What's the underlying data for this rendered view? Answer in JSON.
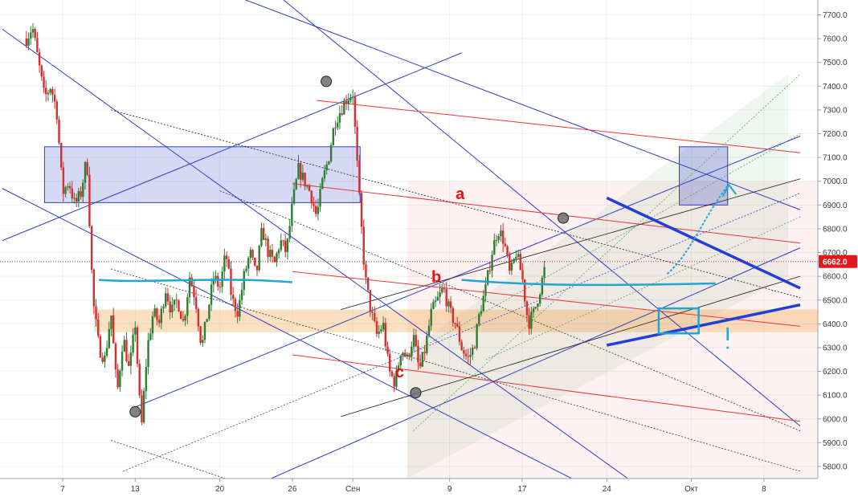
{
  "chart_data": {
    "type": "candlestick",
    "y_axis": {
      "side": "right",
      "range": [
        5750,
        7770
      ],
      "ticks": [
        5800,
        5900,
        6000,
        6100,
        6200,
        6300,
        6400,
        6500,
        6600,
        6700,
        6800,
        6900,
        7000,
        7100,
        7200,
        7300,
        7400,
        7500,
        7600,
        7700
      ],
      "tick_labels": [
        "5800.0",
        "5900.0",
        "6000.0",
        "6100.0",
        "6200.0",
        "6300.0",
        "6400.0",
        "6500.0",
        "6600.0",
        "6700.0",
        "6800.0",
        "6900.0",
        "7000.0",
        "7100.0",
        "7200.0",
        "7300.0",
        "7400.0",
        "7500.0",
        "7600.0",
        "7700.0"
      ]
    },
    "x_axis": {
      "range": [
        0,
        43
      ],
      "ticks": [
        {
          "day": 3,
          "label": "7"
        },
        {
          "day": 9,
          "label": "13"
        },
        {
          "day": 16,
          "label": "20"
        },
        {
          "day": 22,
          "label": "26"
        },
        {
          "day": 27,
          "label": "Сен"
        },
        {
          "day": 35,
          "label": "9"
        },
        {
          "day": 41,
          "label": "17"
        },
        {
          "day": 48,
          "label": "24"
        },
        {
          "day": 55,
          "label": "Окт"
        },
        {
          "day": 61,
          "label": "8"
        }
      ]
    },
    "grid": true,
    "current_price": {
      "value": 6662,
      "label": "6662.0",
      "color": "#e31a1c"
    },
    "colors": {
      "up": "#2e7d32",
      "down": "#d32f2f",
      "lines": "#2f3fc7",
      "zones": "#2f3fc7",
      "support": "#f2a64a",
      "resistance": "#e53935",
      "highlight": "#1fa5d6"
    },
    "close_path": [
      [
        0,
        7600
      ],
      [
        0.5,
        7650
      ],
      [
        1,
        7500
      ],
      [
        1.5,
        7350
      ],
      [
        2,
        7400
      ],
      [
        2.5,
        7300
      ],
      [
        3,
        6950
      ],
      [
        3.5,
        7000
      ],
      [
        4,
        6900
      ],
      [
        4.5,
        6950
      ],
      [
        5,
        7100
      ],
      [
        5.5,
        6500
      ],
      [
        6,
        6300
      ],
      [
        6.5,
        6250
      ],
      [
        7,
        6450
      ],
      [
        7.5,
        6100
      ],
      [
        8,
        6350
      ],
      [
        8.5,
        6200
      ],
      [
        9,
        6400
      ],
      [
        9.5,
        5950
      ],
      [
        10,
        6300
      ],
      [
        10.5,
        6450
      ],
      [
        11,
        6400
      ],
      [
        11.5,
        6550
      ],
      [
        12,
        6450
      ],
      [
        12.5,
        6500
      ],
      [
        13,
        6400
      ],
      [
        13.5,
        6600
      ],
      [
        14,
        6500
      ],
      [
        14.5,
        6300
      ],
      [
        15,
        6450
      ],
      [
        15.5,
        6600
      ],
      [
        16,
        6550
      ],
      [
        16.5,
        6700
      ],
      [
        17,
        6500
      ],
      [
        17.5,
        6450
      ],
      [
        18,
        6600
      ],
      [
        18.5,
        6700
      ],
      [
        19,
        6600
      ],
      [
        19.5,
        6800
      ],
      [
        20,
        6700
      ],
      [
        20.5,
        6650
      ],
      [
        21,
        6750
      ],
      [
        21.5,
        6700
      ],
      [
        22,
        6900
      ],
      [
        22.5,
        7050
      ],
      [
        23,
        7000
      ],
      [
        23.5,
        6950
      ],
      [
        24,
        6850
      ],
      [
        24.5,
        7000
      ],
      [
        25,
        7100
      ],
      [
        25.5,
        7250
      ],
      [
        26,
        7300
      ],
      [
        26.5,
        7350
      ],
      [
        27,
        7370
      ],
      [
        27.5,
        6950
      ],
      [
        28,
        6600
      ],
      [
        28.5,
        6450
      ],
      [
        29,
        6350
      ],
      [
        29.5,
        6400
      ],
      [
        30,
        6200
      ],
      [
        30.5,
        6150
      ],
      [
        31,
        6300
      ],
      [
        31.5,
        6250
      ],
      [
        32,
        6350
      ],
      [
        32.5,
        6200
      ],
      [
        33,
        6300
      ],
      [
        33.5,
        6450
      ],
      [
        34,
        6500
      ],
      [
        34.5,
        6550
      ],
      [
        35,
        6450
      ],
      [
        35.5,
        6400
      ],
      [
        36,
        6300
      ],
      [
        36.5,
        6250
      ],
      [
        37,
        6300
      ],
      [
        37.5,
        6450
      ],
      [
        38,
        6550
      ],
      [
        38.5,
        6700
      ],
      [
        39,
        6800
      ],
      [
        39.5,
        6750
      ],
      [
        40,
        6600
      ],
      [
        40.5,
        6700
      ],
      [
        41,
        6600
      ],
      [
        41.5,
        6400
      ],
      [
        42,
        6450
      ],
      [
        42.5,
        6550
      ],
      [
        43,
        6662
      ]
    ],
    "markers": [
      {
        "day": 9.0,
        "price": 6030
      },
      {
        "day": 24.8,
        "price": 7420
      },
      {
        "day": 32.2,
        "price": 6110
      },
      {
        "day": 44.4,
        "price": 6845
      }
    ],
    "annotations": [
      {
        "label": "a",
        "day": 35.5,
        "price": 6925
      },
      {
        "label": "b",
        "day": 33.5,
        "price": 6575
      },
      {
        "label": "c",
        "day": 30.5,
        "price": 6175
      }
    ]
  }
}
